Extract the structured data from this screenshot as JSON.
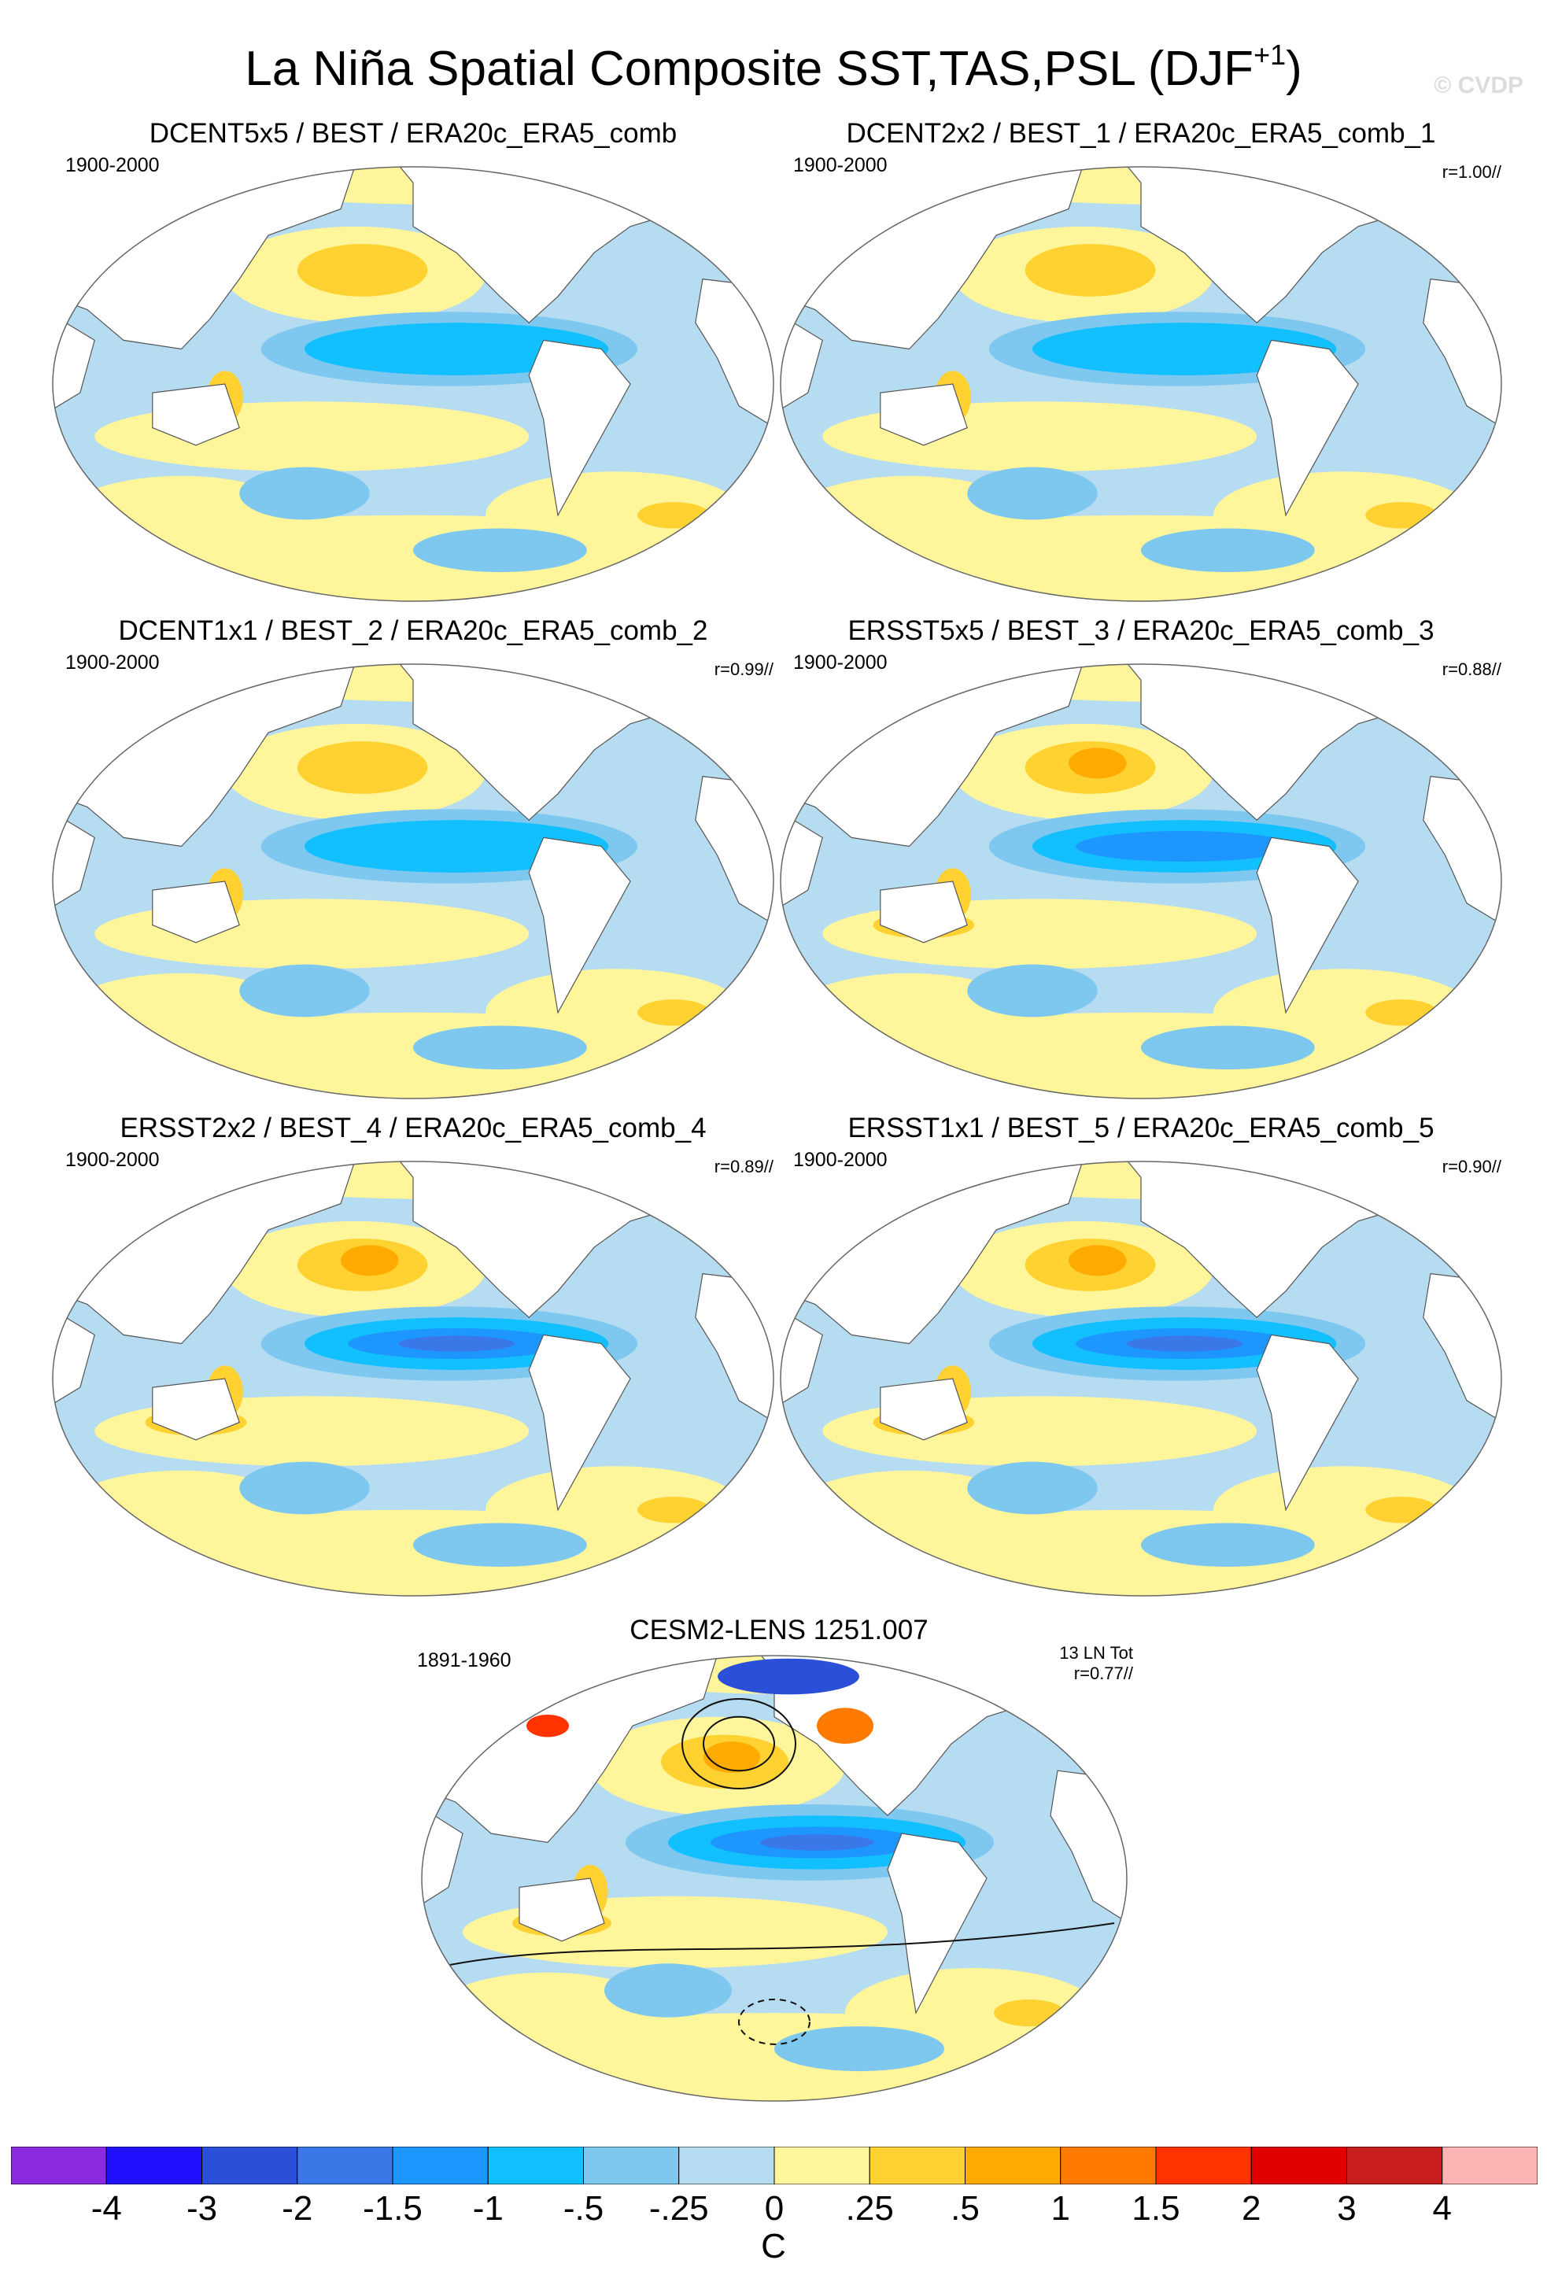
{
  "figure": {
    "title_main": "La Niña Spatial Composite SST,TAS,PSL (DJF",
    "title_sup": "+1",
    "title_close": ")",
    "watermark": "© CVDP"
  },
  "panels": [
    {
      "title": "DCENT5x5 / BEST / ERA20c_ERA5_comb",
      "period": "1900-2000",
      "corr": ""
    },
    {
      "title": "DCENT2x2 / BEST_1 / ERA20c_ERA5_comb_1",
      "period": "1900-2000",
      "corr": "r=1.00//"
    },
    {
      "title": "DCENT1x1 / BEST_2 / ERA20c_ERA5_comb_2",
      "period": "1900-2000",
      "corr": "r=0.99//"
    },
    {
      "title": "ERSST5x5 / BEST_3 / ERA20c_ERA5_comb_3",
      "period": "1900-2000",
      "corr": "r=0.88//"
    },
    {
      "title": "ERSST2x2 / BEST_4 / ERA20c_ERA5_comb_4",
      "period": "1900-2000",
      "corr": "r=0.89//"
    },
    {
      "title": "ERSST1x1 / BEST_5 / ERA20c_ERA5_comb_5",
      "period": "1900-2000",
      "corr": "r=0.90//"
    }
  ],
  "model_panel": {
    "title": "CESM2-LENS 1251.007",
    "period": "1891-1960",
    "count": "13 LN Tot",
    "corr": "r=0.77//"
  },
  "chart_data": {
    "type": "heatmap",
    "projection": "robinson-like global maps, Pacific-centered",
    "variable": "SST/TAS composite anomaly with PSL contours (model panel)",
    "colorbar": {
      "unit": "C",
      "levels": [
        "-4",
        "-3",
        "-2",
        "-1.5",
        "-1",
        "-.5",
        "-.25",
        "0",
        ".25",
        ".5",
        "1",
        "1.5",
        "2",
        "3",
        "4"
      ],
      "colors": [
        "#8a2be2",
        "#1e10ff",
        "#2a4fd8",
        "#3b78e7",
        "#1e96ff",
        "#12bfff",
        "#7ec8f0",
        "#b6dcf2",
        "#fff59a",
        "#ffd232",
        "#ffaa00",
        "#ff7a00",
        "#ff3300",
        "#e00000",
        "#c81e1e",
        "#ffb4b4"
      ]
    },
    "features": {
      "equatorial_pacific": -1.0,
      "north_pacific": 0.5,
      "southern_ocean": 0.25,
      "indian_ocean": -0.25
    }
  }
}
